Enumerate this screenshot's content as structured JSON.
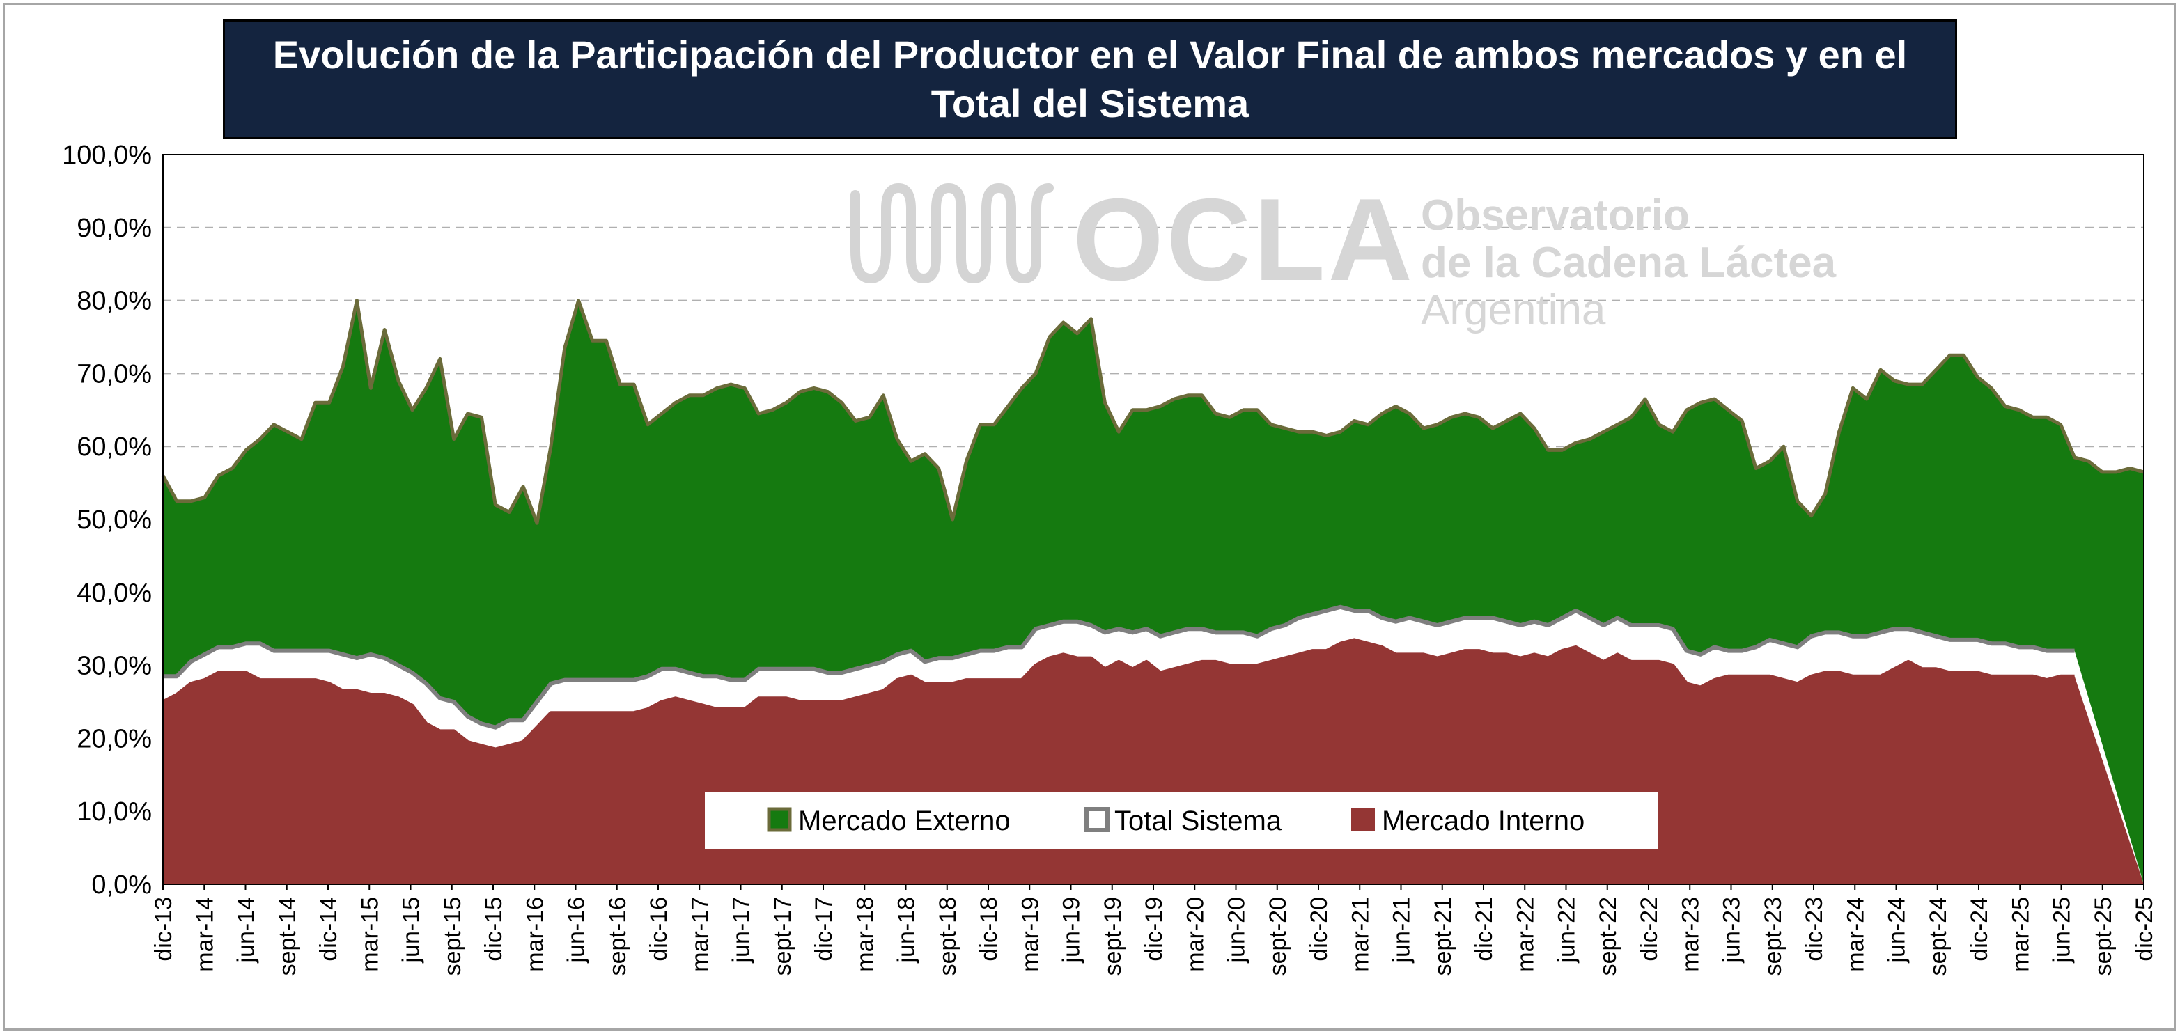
{
  "chart_data": {
    "type": "area",
    "title": "Evolución de la Participación del Productor en el Valor Final de ambos mercados y en el Total del Sistema",
    "xlabel": "",
    "ylabel": "",
    "ylim": [
      0,
      100
    ],
    "y_ticks": [
      "0,0%",
      "10,0%",
      "20,0%",
      "30,0%",
      "40,0%",
      "50,0%",
      "60,0%",
      "70,0%",
      "80,0%",
      "90,0%",
      "100,0%"
    ],
    "x_tick_labels": [
      "dic-13",
      "mar-14",
      "jun-14",
      "sept-14",
      "dic-14",
      "mar-15",
      "jun-15",
      "sept-15",
      "dic-15",
      "mar-16",
      "jun-16",
      "sept-16",
      "dic-16",
      "mar-17",
      "jun-17",
      "sept-17",
      "dic-17",
      "mar-18",
      "jun-18",
      "sept-18",
      "dic-18",
      "mar-19",
      "jun-19",
      "sept-19",
      "dic-19",
      "mar-20",
      "jun-20",
      "sept-20",
      "dic-20",
      "mar-21",
      "jun-21",
      "sept-21",
      "dic-21",
      "mar-22",
      "jun-22",
      "sept-22",
      "dic-22",
      "mar-23",
      "jun-23",
      "sept-23",
      "dic-23",
      "mar-24",
      "jun-24",
      "sept-24",
      "dic-24",
      "mar-25",
      "jun-25",
      "sept-25",
      "dic-25"
    ],
    "grid": true,
    "legend_position": "bottom-center",
    "series": [
      {
        "name": "Mercado Externo",
        "color": "#157a10",
        "outline": "#6b6b3a",
        "values": [
          56,
          52.5,
          52.5,
          53,
          56,
          57,
          59.5,
          61,
          63,
          62,
          61,
          66,
          66,
          71,
          80,
          68,
          76,
          69,
          65,
          68,
          72,
          61,
          64.5,
          64,
          52,
          51,
          54.5,
          49.5,
          60,
          73.5,
          80,
          74.5,
          74.5,
          68.5,
          68.5,
          63,
          64.5,
          66,
          67,
          67,
          68,
          68.5,
          68,
          64.5,
          65,
          66,
          67.5,
          68,
          67.5,
          66,
          63.5,
          64,
          67,
          61,
          58,
          59,
          57,
          50,
          58,
          63,
          63,
          65.5,
          68,
          70,
          75,
          77,
          75.5,
          77.5,
          66,
          62,
          65,
          65,
          65.5,
          66.5,
          67,
          67,
          64.5,
          64,
          65,
          65,
          63,
          62.5,
          62,
          62,
          61.5,
          62,
          63.5,
          63,
          64.5,
          65.5,
          64.5,
          62.5,
          63,
          64,
          64.5,
          64,
          62.5,
          63.5,
          64.5,
          62.5,
          59.5,
          59.5,
          60.5,
          61,
          62,
          63,
          64,
          66.5,
          63,
          62,
          65,
          66,
          66.5,
          65,
          63.5,
          57,
          58,
          60,
          52.5,
          50.5,
          53.5,
          62,
          68,
          66.5,
          70.5,
          69,
          68.5,
          68.5,
          70.5,
          72.5,
          72.5,
          69.5,
          68,
          65.5,
          65,
          64,
          64,
          63,
          58.5,
          58,
          56.5,
          56.5,
          57,
          56.5
        ]
      },
      {
        "name": "Total Sistema",
        "color": "#ffffff",
        "outline": "#7f7f7f",
        "values": [
          28.5,
          28.5,
          30.5,
          31.5,
          32.5,
          32.5,
          33,
          33,
          32,
          32,
          32,
          32,
          32,
          31.5,
          31,
          31.5,
          31,
          30,
          29,
          27.5,
          25.5,
          25,
          23,
          22,
          21.5,
          22.5,
          22.5,
          25,
          27.5,
          28,
          28,
          28,
          28,
          28,
          28,
          28.5,
          29.5,
          29.5,
          29,
          28.5,
          28.5,
          28,
          28,
          29.5,
          29.5,
          29.5,
          29.5,
          29.5,
          29,
          29,
          29.5,
          30,
          30.5,
          31.5,
          32,
          30.5,
          31,
          31,
          31.5,
          32,
          32,
          32.5,
          32.5,
          35,
          35.5,
          36,
          36,
          35.5,
          34.5,
          35,
          34.5,
          35,
          34,
          34.5,
          35,
          35,
          34.5,
          34.5,
          34.5,
          34,
          35,
          35.5,
          36.5,
          37,
          37.5,
          38,
          37.5,
          37.5,
          36.5,
          36,
          36.5,
          36,
          35.5,
          36,
          36.5,
          36.5,
          36.5,
          36,
          35.5,
          36,
          35.5,
          36.5,
          37.5,
          36.5,
          35.5,
          36.5,
          35.5,
          35.5,
          35.5,
          35,
          32,
          31.5,
          32.5,
          32,
          32,
          32.5,
          33.5,
          33,
          32.5,
          34,
          34.5,
          34.5,
          34,
          34,
          34.5,
          35,
          35,
          34.5,
          34,
          33.5,
          33.5,
          33.5,
          33,
          33,
          32.5,
          32.5,
          32,
          32,
          32
        ]
      },
      {
        "name": "Mercado Interno",
        "color": "#943634",
        "outline": "#943634",
        "values": [
          25,
          26,
          27.5,
          28,
          29,
          29,
          29,
          28,
          28,
          28,
          28,
          28,
          27.5,
          26.5,
          26.5,
          26,
          26,
          25.5,
          24.5,
          22,
          21,
          21,
          19.5,
          19,
          18.5,
          19,
          19.5,
          21.5,
          23.5,
          23.5,
          23.5,
          23.5,
          23.5,
          23.5,
          23.5,
          24,
          25,
          25.5,
          25,
          24.5,
          24,
          24,
          24,
          25.5,
          25.5,
          25.5,
          25,
          25,
          25,
          25,
          25.5,
          26,
          26.5,
          28,
          28.5,
          27.5,
          27.5,
          27.5,
          28,
          28,
          28,
          28,
          28,
          30,
          31,
          31.5,
          31,
          31,
          29.5,
          30.5,
          29.5,
          30.5,
          29,
          29.5,
          30,
          30.5,
          30.5,
          30,
          30,
          30,
          30.5,
          31,
          31.5,
          32,
          32,
          33,
          33.5,
          33,
          32.5,
          31.5,
          31.5,
          31.5,
          31,
          31.5,
          32,
          32,
          31.5,
          31.5,
          31,
          31.5,
          31,
          32,
          32.5,
          31.5,
          30.5,
          31.5,
          30.5,
          30.5,
          30.5,
          30,
          27.5,
          27,
          28,
          28.5,
          28.5,
          28.5,
          28.5,
          28,
          27.5,
          28.5,
          29,
          29,
          28.5,
          28.5,
          28.5,
          29.5,
          30.5,
          29.5,
          29.5,
          29,
          29,
          29,
          28.5,
          28.5,
          28.5,
          28.5,
          28,
          28.5,
          28.5
        ]
      }
    ]
  },
  "watermark": {
    "acronym": "OCLA",
    "line1": "Observatorio",
    "line2": "de la Cadena Láctea",
    "line3": "Argentina"
  }
}
